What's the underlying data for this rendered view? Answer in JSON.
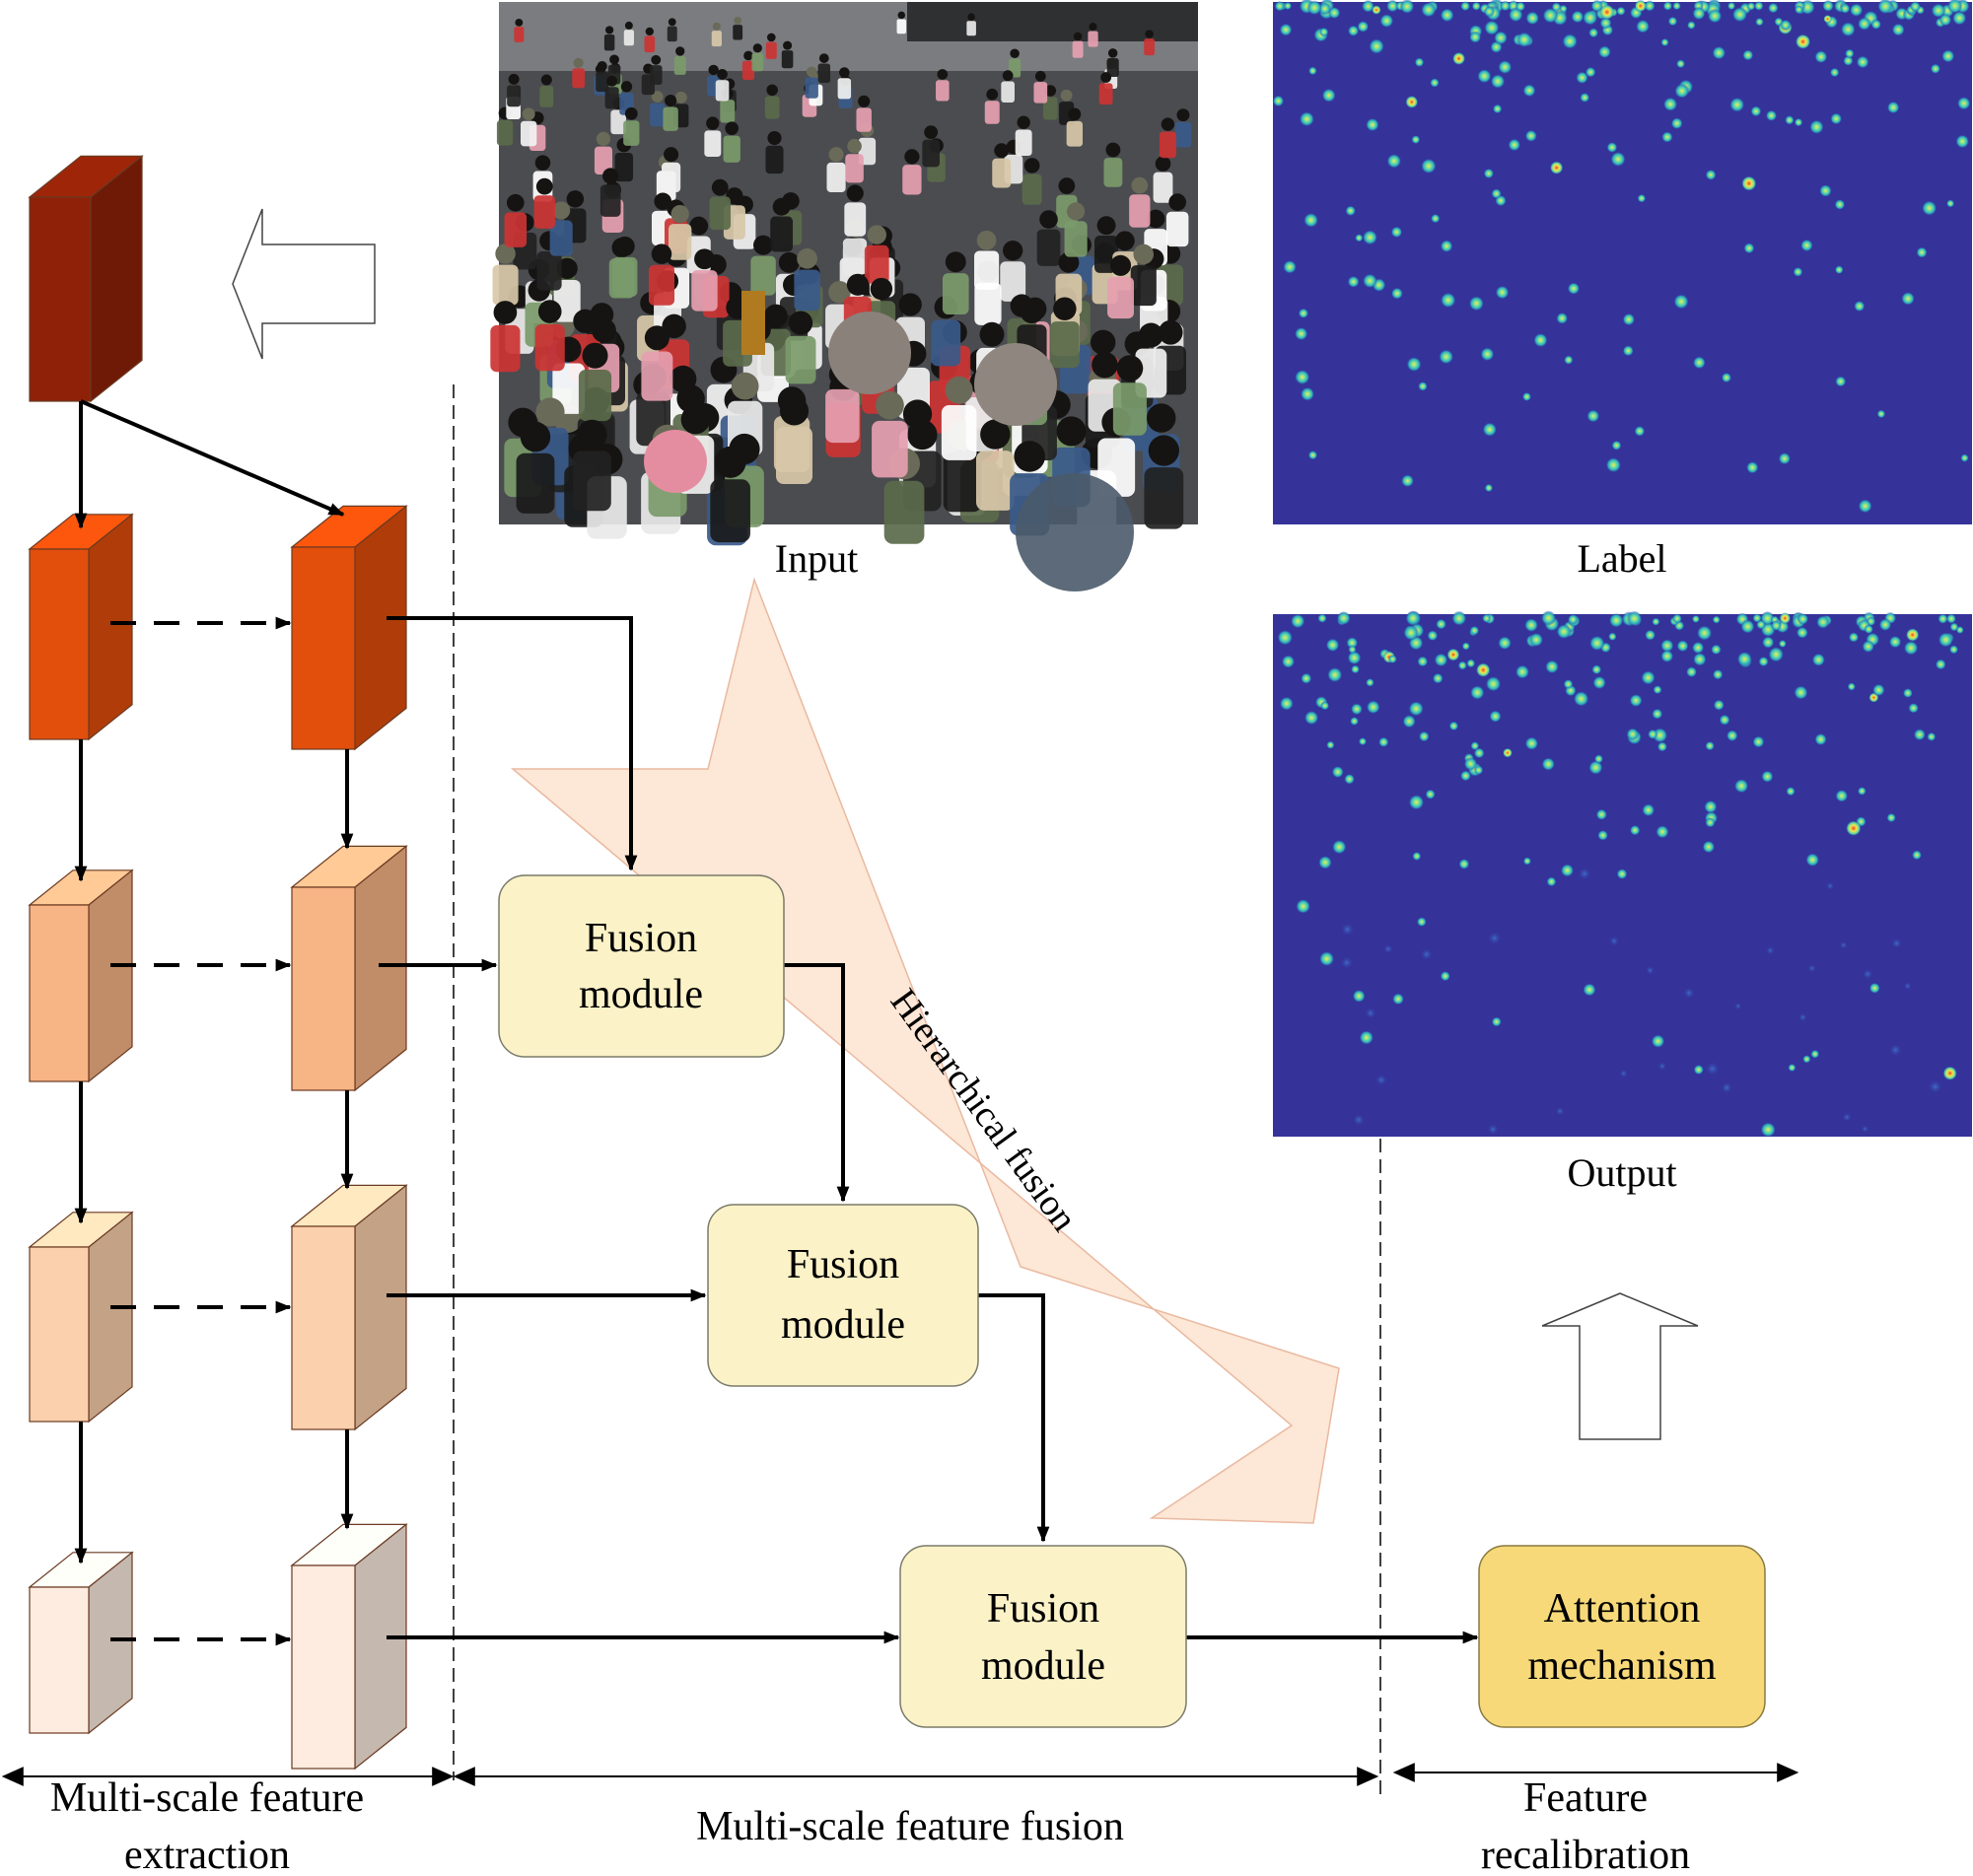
{
  "labels": {
    "input": "Input",
    "label": "Label",
    "output": "Output",
    "hierarchical_fusion": "Hierarchical fusion"
  },
  "fusion_modules": [
    {
      "line1": "Fusion",
      "line2": "module"
    },
    {
      "line1": "Fusion",
      "line2": "module"
    },
    {
      "line1": "Fusion",
      "line2": "module"
    }
  ],
  "attention": {
    "line1": "Attention",
    "line2": "mechanism"
  },
  "sections": {
    "extraction": {
      "line1": "Multi-scale feature",
      "line2": "extraction"
    },
    "fusion": {
      "line1": "Multi-scale feature fusion"
    },
    "recalibration": {
      "line1": "Feature",
      "line2": "recalibration"
    }
  },
  "colors": {
    "fusion_fill": "#fbf2c7",
    "fusion_stroke": "#7a7a6a",
    "attention_fill": "#f7d97a",
    "attention_stroke": "#8a7a40",
    "big_arrow_fill": "#fde7d6",
    "density_bg": "#35329a",
    "block_dark": "#8e2108",
    "block_l1": "#e24e0c",
    "block_l2": "#f7b485",
    "block_l3": "#fbd0ac",
    "block_l4": "#fdecdf"
  }
}
